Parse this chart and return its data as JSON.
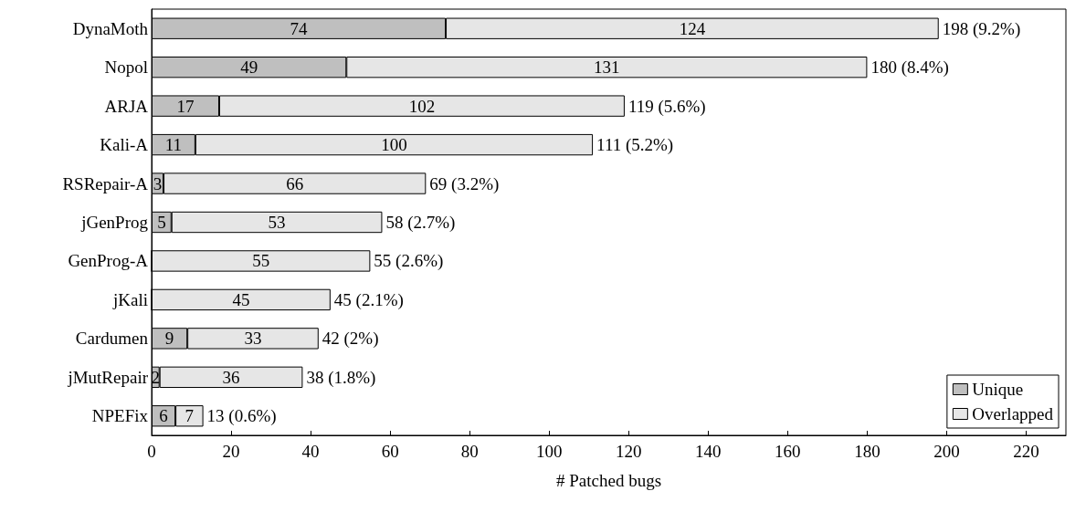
{
  "chart_data": {
    "type": "bar",
    "orientation": "horizontal",
    "stacked": true,
    "xlabel": "# Patched bugs",
    "categories": [
      "DynaMoth",
      "Nopol",
      "ARJA",
      "Kali-A",
      "RSRepair-A",
      "jGenProg",
      "GenProg-A",
      "jKali",
      "Cardumen",
      "jMutRepair",
      "NPEFix"
    ],
    "series": [
      {
        "name": "Unique",
        "color": "#bfbfbf",
        "values": [
          74,
          49,
          17,
          11,
          3,
          5,
          0,
          0,
          9,
          2,
          6
        ],
        "value_labels": [
          "74",
          "49",
          "17",
          "11",
          "3",
          "5",
          null,
          null,
          "9",
          "2",
          "6"
        ]
      },
      {
        "name": "Overlapped",
        "color": "#e6e6e6",
        "values": [
          124,
          131,
          102,
          100,
          66,
          53,
          55,
          45,
          33,
          36,
          7
        ],
        "value_labels": [
          "124",
          "131",
          "102",
          "100",
          "66",
          "53",
          "55",
          "45",
          "33",
          "36",
          "7"
        ]
      }
    ],
    "totals": [
      "198 (9.2%)",
      "180 (8.4%)",
      "119 (5.6%)",
      "111 (5.2%)",
      "69 (3.2%)",
      "58 (2.7%)",
      "55 (2.6%)",
      "45 (2.1%)",
      "42 (2%)",
      "38 (1.8%)",
      "13 (0.6%)"
    ],
    "xlim": [
      0,
      230
    ],
    "xticks": [
      0,
      20,
      40,
      60,
      80,
      100,
      120,
      140,
      160,
      180,
      200,
      220
    ],
    "grid": false,
    "legend": "bottom right"
  }
}
